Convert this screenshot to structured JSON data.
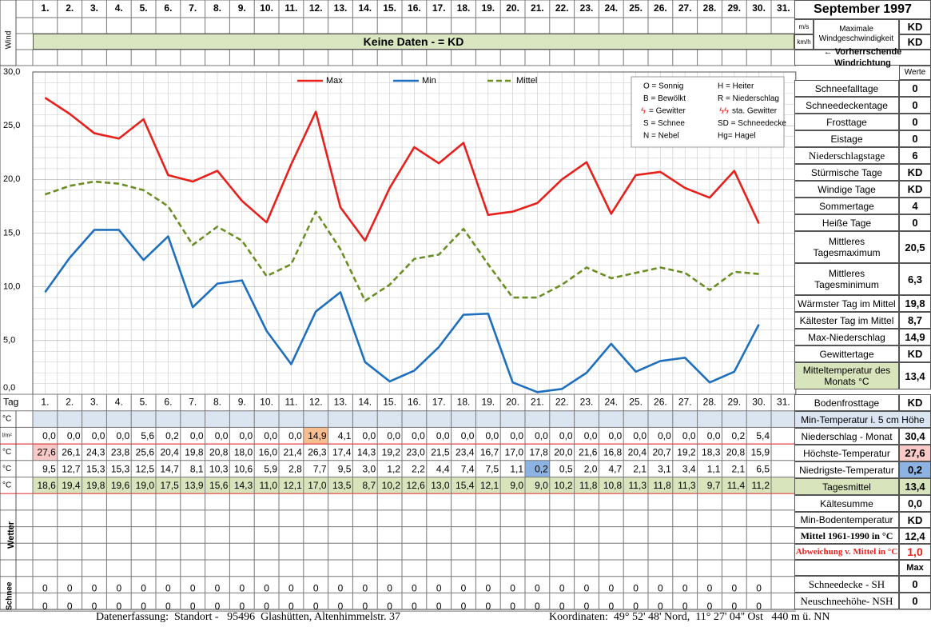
{
  "title": "September 1997",
  "header": {
    "wind_label": "Wind",
    "units": [
      "m/s",
      "km/h"
    ],
    "max_wind_label": "Maximale Windgeschwindigkeit",
    "max_wind_values": [
      "KD",
      "KD"
    ],
    "no_data_banner": "Keine Daten -  = KD",
    "prevailing_wind": "← Vorherrschende Windrichtung",
    "werte_label": "Werte"
  },
  "days": [
    "1.",
    "2.",
    "3.",
    "4.",
    "5.",
    "6.",
    "7.",
    "8.",
    "9.",
    "10.",
    "11.",
    "12.",
    "13.",
    "14.",
    "15.",
    "16.",
    "17.",
    "18.",
    "19.",
    "20.",
    "21.",
    "22.",
    "23.",
    "24.",
    "25.",
    "26.",
    "27.",
    "28.",
    "29.",
    "30.",
    "31."
  ],
  "chart_data": {
    "type": "line",
    "x": [
      1,
      2,
      3,
      4,
      5,
      6,
      7,
      8,
      9,
      10,
      11,
      12,
      13,
      14,
      15,
      16,
      17,
      18,
      19,
      20,
      21,
      22,
      23,
      24,
      25,
      26,
      27,
      28,
      29,
      30
    ],
    "ylim": [
      0,
      30
    ],
    "yticks": [
      "0,0",
      "5,0",
      "10,0",
      "15,0",
      "20,0",
      "25,0",
      "30,0"
    ],
    "grid": true,
    "legend_position": "top",
    "series": [
      {
        "name": "Max",
        "color": "#e8201c",
        "dash": false,
        "values": [
          27.6,
          26.1,
          24.3,
          23.8,
          25.6,
          20.4,
          19.8,
          20.8,
          18.0,
          16.0,
          21.4,
          26.3,
          17.4,
          14.3,
          19.2,
          23.0,
          21.5,
          23.4,
          16.7,
          17.0,
          17.8,
          20.0,
          21.6,
          16.8,
          20.4,
          20.7,
          19.2,
          18.3,
          20.8,
          15.9
        ]
      },
      {
        "name": "Min",
        "color": "#1f6fbf",
        "dash": false,
        "values": [
          9.5,
          12.7,
          15.3,
          15.3,
          12.5,
          14.7,
          8.1,
          10.3,
          10.6,
          5.9,
          2.8,
          7.7,
          9.5,
          3.0,
          1.2,
          2.2,
          4.4,
          7.4,
          7.5,
          1.1,
          0.2,
          0.5,
          2.0,
          4.7,
          2.1,
          3.1,
          3.4,
          1.1,
          2.1,
          6.5
        ]
      },
      {
        "name": "Mittel",
        "color": "#6b8e23",
        "dash": true,
        "values": [
          18.6,
          19.4,
          19.8,
          19.6,
          19.0,
          17.5,
          13.9,
          15.6,
          14.3,
          11.0,
          12.1,
          17.0,
          13.5,
          8.7,
          10.2,
          12.6,
          13.0,
          15.4,
          12.1,
          9.0,
          9.0,
          10.2,
          11.8,
          10.8,
          11.3,
          11.8,
          11.3,
          9.7,
          11.4,
          11.2
        ]
      }
    ]
  },
  "legend_box": [
    [
      "O = Sonnig",
      "H = Heiter"
    ],
    [
      "B = Bewölkt",
      "R = Niederschlag"
    ],
    [
      "= Gewitter",
      "sta. Gewitter"
    ],
    [
      "S = Schnee",
      "SD = Schneedecke"
    ],
    [
      "N = Nebel",
      "Hg= Hagel"
    ]
  ],
  "right_stats": [
    {
      "label": "Schneefalltage",
      "value": "0"
    },
    {
      "label": "Schneedeckentage",
      "value": "0"
    },
    {
      "label": "Frosttage",
      "value": "0"
    },
    {
      "label": "Eistage",
      "value": "0"
    },
    {
      "label": "Niederschlagstage",
      "value": "6"
    },
    {
      "label": "Stürmische Tage",
      "value": "KD"
    },
    {
      "label": "Windige Tage",
      "value": "KD"
    },
    {
      "label": "Sommertage",
      "value": "4"
    },
    {
      "label": "Heiße Tage",
      "value": "0"
    },
    {
      "label": "Mittleres Tagesmaximum",
      "value": "20,5"
    },
    {
      "label": "Mittleres Tagesminimum",
      "value": "6,3"
    },
    {
      "label": "Wärmster Tag im Mittel",
      "value": "19,8"
    },
    {
      "label": "Kältester Tag im Mittel",
      "value": "8,7"
    },
    {
      "label": "Max-Niederschlag",
      "value": "14,9"
    },
    {
      "label": "Gewittertage",
      "value": "KD"
    },
    {
      "label": "Mitteltemperatur des Monats °C",
      "value": "13,4"
    }
  ],
  "table": {
    "tag_label": "Tag",
    "row_labels": [
      "°C",
      "l/m²",
      "°C",
      "°C",
      "°C"
    ],
    "soil_min": [],
    "precip": [
      "0,0",
      "0,0",
      "0,0",
      "0,0",
      "5,6",
      "0,2",
      "0,0",
      "0,0",
      "0,0",
      "0,0",
      "0,0",
      "14,9",
      "4,1",
      "0,0",
      "0,0",
      "0,0",
      "0,0",
      "0,0",
      "0,0",
      "0,0",
      "0,0",
      "0,0",
      "0,0",
      "0,0",
      "0,0",
      "0,0",
      "0,0",
      "0,0",
      "0,2",
      "5,4"
    ],
    "max": [
      "27,6",
      "26,1",
      "24,3",
      "23,8",
      "25,6",
      "20,4",
      "19,8",
      "20,8",
      "18,0",
      "16,0",
      "21,4",
      "26,3",
      "17,4",
      "14,3",
      "19,2",
      "23,0",
      "21,5",
      "23,4",
      "16,7",
      "17,0",
      "17,8",
      "20,0",
      "21,6",
      "16,8",
      "20,4",
      "20,7",
      "19,2",
      "18,3",
      "20,8",
      "15,9"
    ],
    "min": [
      "9,5",
      "12,7",
      "15,3",
      "15,3",
      "12,5",
      "14,7",
      "8,1",
      "10,3",
      "10,6",
      "5,9",
      "2,8",
      "7,7",
      "9,5",
      "3,0",
      "1,2",
      "2,2",
      "4,4",
      "7,4",
      "7,5",
      "1,1",
      "0,2",
      "0,5",
      "2,0",
      "4,7",
      "2,1",
      "3,1",
      "3,4",
      "1,1",
      "2,1",
      "6,5"
    ],
    "mean": [
      "18,6",
      "19,4",
      "19,8",
      "19,6",
      "19,0",
      "17,5",
      "13,9",
      "15,6",
      "14,3",
      "11,0",
      "12,1",
      "17,0",
      "13,5",
      "8,7",
      "10,2",
      "12,6",
      "13,0",
      "15,4",
      "12,1",
      "9,0",
      "9,0",
      "10,2",
      "11,8",
      "10,8",
      "11,3",
      "11,8",
      "11,3",
      "9,7",
      "11,4",
      "11,2"
    ],
    "wetter_label": "Wetter",
    "schnee_label": "Schnee",
    "snow_sh": [
      "0",
      "0",
      "0",
      "0",
      "0",
      "0",
      "0",
      "0",
      "0",
      "0",
      "0",
      "0",
      "0",
      "0",
      "0",
      "0",
      "0",
      "0",
      "0",
      "0",
      "0",
      "0",
      "0",
      "0",
      "0",
      "0",
      "0",
      "0",
      "0",
      "0"
    ],
    "snow_nsh": [
      "0",
      "0",
      "0",
      "0",
      "0",
      "0",
      "0",
      "0",
      "0",
      "0",
      "0",
      "0",
      "0",
      "0",
      "0",
      "0",
      "0",
      "0",
      "0",
      "0",
      "0",
      "0",
      "0",
      "0",
      "0",
      "0",
      "0",
      "0",
      "0",
      "0"
    ]
  },
  "lower_right": [
    {
      "label": "Bodenfrosttage",
      "value": "KD"
    },
    {
      "label": "Min-Temperatur i. 5 cm Höhe",
      "value": ""
    },
    {
      "label": "Niederschlag - Monat",
      "value": "30,4"
    },
    {
      "label": "Höchste-Temperatur",
      "value": "27,6"
    },
    {
      "label": "Niedrigste-Temperatur",
      "value": "0,2"
    },
    {
      "label": "Tagesmittel",
      "value": "13,4"
    },
    {
      "label": "Kältesumme",
      "value": "0,0"
    },
    {
      "label": "Min-Bodentemperatur",
      "value": "KD"
    },
    {
      "label": "Mittel 1961-1990 in °C",
      "value": "12,4"
    },
    {
      "label": "Abweichung v. Mittel in °C",
      "value": "1,0"
    },
    {
      "label": "",
      "value": "Max"
    },
    {
      "label": "Schneedecke -   SH",
      "value": "0"
    },
    {
      "label": "Neuschneehöhe- NSH",
      "value": "0"
    }
  ],
  "footer": {
    "left": "Datenerfassung:  Standort -   95496  Glashütten, Altenhimmelstr. 37",
    "right": "Koordinaten:  49° 52' 48' Nord,  11° 27' 04'' Ost   440 m ü. NN"
  },
  "colors": {
    "banner_green": "#d9e6c0",
    "soil_row": "#dbe5f1",
    "mean_row": "#d8e4bc",
    "highlight_orange": "#f9be8f",
    "highlight_pink": "#f8c9c6",
    "highlight_blue": "#8db3e2"
  }
}
